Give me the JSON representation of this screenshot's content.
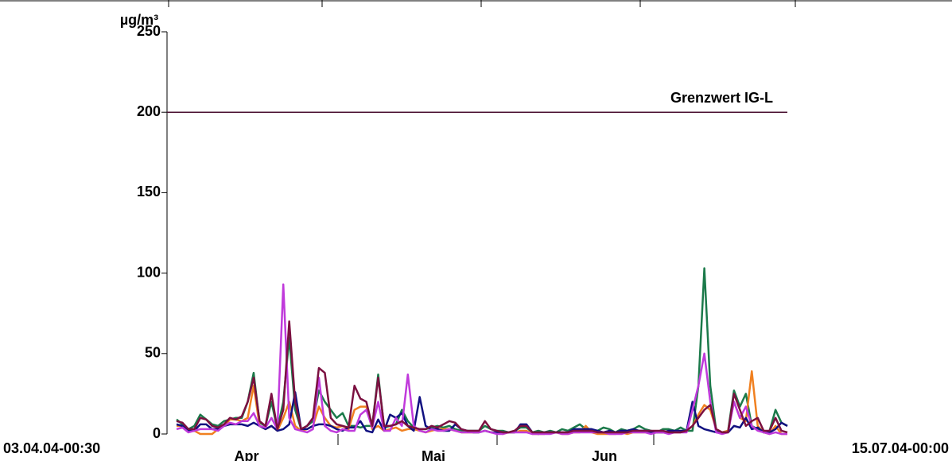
{
  "chart_data": {
    "type": "line",
    "y_label": "µg/m³",
    "ylim": [
      0,
      250
    ],
    "yticks": [
      0,
      50,
      100,
      150,
      200,
      250
    ],
    "x_start_label": "03.04.04-00:30",
    "x_end_label": "15.07.04-00:00",
    "months": [
      "Apr",
      "Mai",
      "Jun"
    ],
    "threshold": {
      "text": "Grenzwert IG-L",
      "value": 200,
      "color": "#4a1030"
    },
    "series": [
      {
        "color": "#1b7a4a",
        "values": [
          9,
          6,
          3,
          5,
          12,
          9,
          6,
          5,
          8,
          9,
          10,
          10,
          20,
          38,
          7,
          5,
          20,
          3,
          20,
          60,
          15,
          3,
          5,
          8,
          27,
          20,
          15,
          10,
          13,
          5,
          5,
          4,
          5,
          5,
          37,
          4,
          5,
          6,
          15,
          8,
          4,
          3,
          3,
          4,
          5,
          4,
          5,
          3,
          2,
          2,
          2,
          2,
          5,
          3,
          2,
          2,
          1,
          2,
          4,
          4,
          1,
          2,
          1,
          2,
          1,
          3,
          2,
          4,
          6,
          3,
          2,
          2,
          4,
          3,
          1,
          3,
          2,
          3,
          5,
          3,
          2,
          1,
          3,
          3,
          2,
          4,
          2,
          2,
          30,
          103,
          30,
          2,
          1,
          2,
          27,
          17,
          25,
          5,
          3,
          1,
          2,
          15,
          7,
          5
        ]
      },
      {
        "color": "#f08020",
        "values": [
          5,
          5,
          2,
          2,
          0,
          0,
          0,
          3,
          5,
          9,
          9,
          8,
          10,
          30,
          5,
          3,
          5,
          2,
          10,
          20,
          5,
          2,
          3,
          5,
          17,
          10,
          5,
          4,
          5,
          3,
          15,
          17,
          17,
          3,
          5,
          2,
          3,
          4,
          2,
          3,
          3,
          2,
          1,
          2,
          3,
          3,
          3,
          2,
          1,
          1,
          1,
          1,
          2,
          1,
          1,
          0,
          1,
          1,
          2,
          2,
          0,
          0,
          0,
          1,
          1,
          0,
          0,
          1,
          1,
          5,
          1,
          0,
          0,
          0,
          0,
          1,
          0,
          1,
          1,
          1,
          1,
          1,
          1,
          1,
          1,
          1,
          2,
          5,
          12,
          18,
          15,
          3,
          1,
          2,
          20,
          10,
          8,
          39,
          5,
          1,
          0,
          5,
          0,
          0
        ]
      },
      {
        "color": "#101080",
        "values": [
          6,
          5,
          2,
          2,
          6,
          6,
          3,
          3,
          5,
          6,
          6,
          6,
          5,
          7,
          5,
          3,
          5,
          2,
          3,
          6,
          26,
          3,
          3,
          5,
          6,
          6,
          5,
          3,
          2,
          4,
          4,
          8,
          2,
          1,
          9,
          2,
          12,
          10,
          13,
          5,
          2,
          23,
          5,
          3,
          3,
          2,
          2,
          6,
          3,
          2,
          1,
          1,
          2,
          1,
          1,
          1,
          1,
          1,
          6,
          6,
          1,
          0,
          1,
          1,
          1,
          1,
          1,
          3,
          3,
          3,
          3,
          2,
          1,
          2,
          1,
          2,
          2,
          3,
          2,
          2,
          1,
          1,
          1,
          2,
          2,
          2,
          2,
          20,
          5,
          3,
          2,
          1,
          1,
          1,
          5,
          4,
          10,
          3,
          4,
          1,
          1,
          3,
          7,
          5
        ]
      },
      {
        "color": "#c03adb",
        "values": [
          3,
          4,
          1,
          2,
          3,
          3,
          3,
          2,
          5,
          7,
          6,
          8,
          8,
          13,
          5,
          4,
          10,
          3,
          93,
          10,
          3,
          2,
          1,
          3,
          35,
          5,
          2,
          1,
          3,
          2,
          2,
          12,
          15,
          4,
          20,
          2,
          2,
          10,
          5,
          37,
          5,
          2,
          1,
          3,
          2,
          2,
          3,
          2,
          1,
          1,
          1,
          1,
          2,
          1,
          0,
          0,
          1,
          1,
          1,
          1,
          0,
          0,
          0,
          0,
          1,
          0,
          0,
          1,
          1,
          1,
          1,
          1,
          1,
          0,
          0,
          0,
          1,
          1,
          1,
          1,
          0,
          1,
          1,
          0,
          1,
          1,
          1,
          15,
          30,
          50,
          20,
          1,
          0,
          1,
          20,
          10,
          17,
          5,
          2,
          1,
          0,
          1,
          0,
          0
        ]
      },
      {
        "color": "#7b1040",
        "values": [
          8,
          7,
          3,
          3,
          10,
          9,
          5,
          4,
          6,
          10,
          9,
          11,
          20,
          35,
          8,
          5,
          25,
          3,
          15,
          70,
          20,
          3,
          5,
          10,
          41,
          38,
          10,
          6,
          5,
          4,
          30,
          22,
          20,
          5,
          35,
          5,
          5,
          6,
          8,
          5,
          4,
          3,
          3,
          5,
          4,
          6,
          8,
          7,
          3,
          2,
          2,
          2,
          8,
          3,
          2,
          1,
          1,
          2,
          5,
          5,
          1,
          1,
          1,
          1,
          1,
          1,
          1,
          2,
          2,
          2,
          2,
          1,
          1,
          1,
          1,
          1,
          1,
          2,
          2,
          2,
          2,
          2,
          2,
          1,
          1,
          1,
          2,
          5,
          10,
          15,
          18,
          3,
          1,
          1,
          25,
          15,
          5,
          8,
          10,
          2,
          2,
          10,
          2,
          1
        ]
      }
    ]
  }
}
